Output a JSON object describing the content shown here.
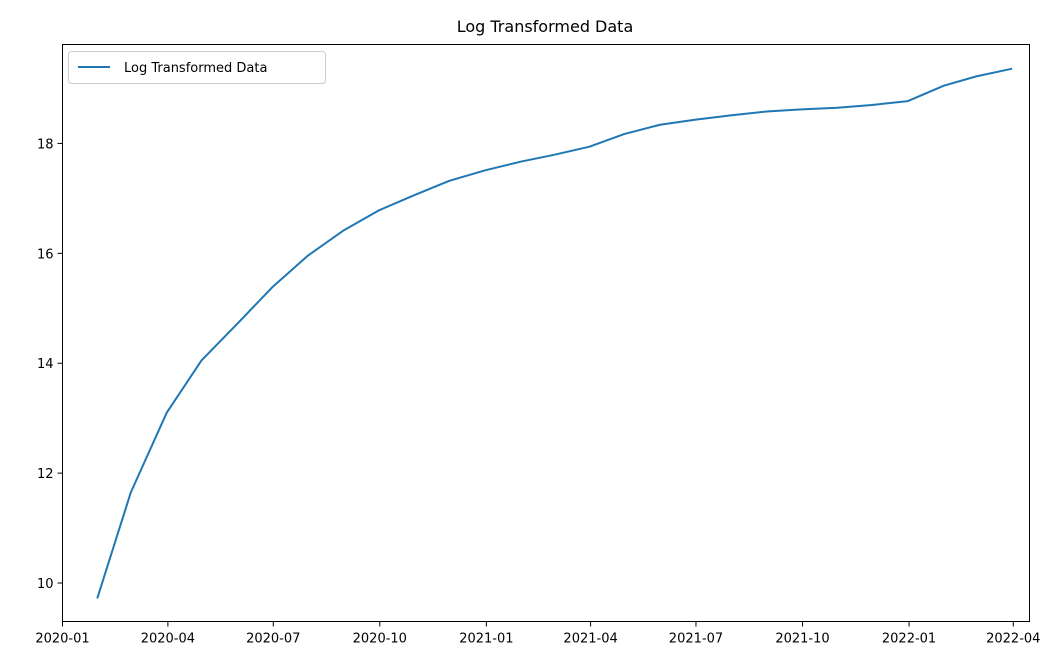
{
  "chart_data": {
    "type": "line",
    "title": "Log Transformed Data",
    "xlabel": "",
    "ylabel": "",
    "x_axis_type": "date",
    "xlim": [
      "2020-01-01",
      "2022-04-15"
    ],
    "ylim": [
      9.3,
      19.8
    ],
    "x_ticks": [
      "2020-01",
      "2020-04",
      "2020-07",
      "2020-10",
      "2021-01",
      "2021-04",
      "2021-07",
      "2021-10",
      "2022-01",
      "2022-04"
    ],
    "y_ticks": [
      10,
      12,
      14,
      16,
      18
    ],
    "grid": false,
    "legend_position": "upper-left",
    "series": [
      {
        "name": "Log Transformed Data",
        "color": "#1f77b4",
        "x": [
          "2020-01-31",
          "2020-02-29",
          "2020-03-31",
          "2020-04-30",
          "2020-05-31",
          "2020-06-30",
          "2020-07-31",
          "2020-08-31",
          "2020-09-30",
          "2020-10-31",
          "2020-11-30",
          "2020-12-31",
          "2021-01-31",
          "2021-02-28",
          "2021-03-31",
          "2021-04-30",
          "2021-05-31",
          "2021-06-30",
          "2021-07-31",
          "2021-08-31",
          "2021-09-30",
          "2021-10-31",
          "2021-11-30",
          "2021-12-31",
          "2022-01-31",
          "2022-02-28",
          "2022-03-31"
        ],
        "y": [
          9.72,
          11.65,
          13.1,
          14.05,
          14.72,
          15.38,
          15.96,
          16.42,
          16.78,
          17.06,
          17.32,
          17.51,
          17.67,
          17.79,
          17.94,
          18.17,
          18.34,
          18.43,
          18.51,
          18.58,
          18.62,
          18.65,
          18.7,
          18.77,
          19.05,
          19.22,
          19.36
        ]
      }
    ]
  }
}
